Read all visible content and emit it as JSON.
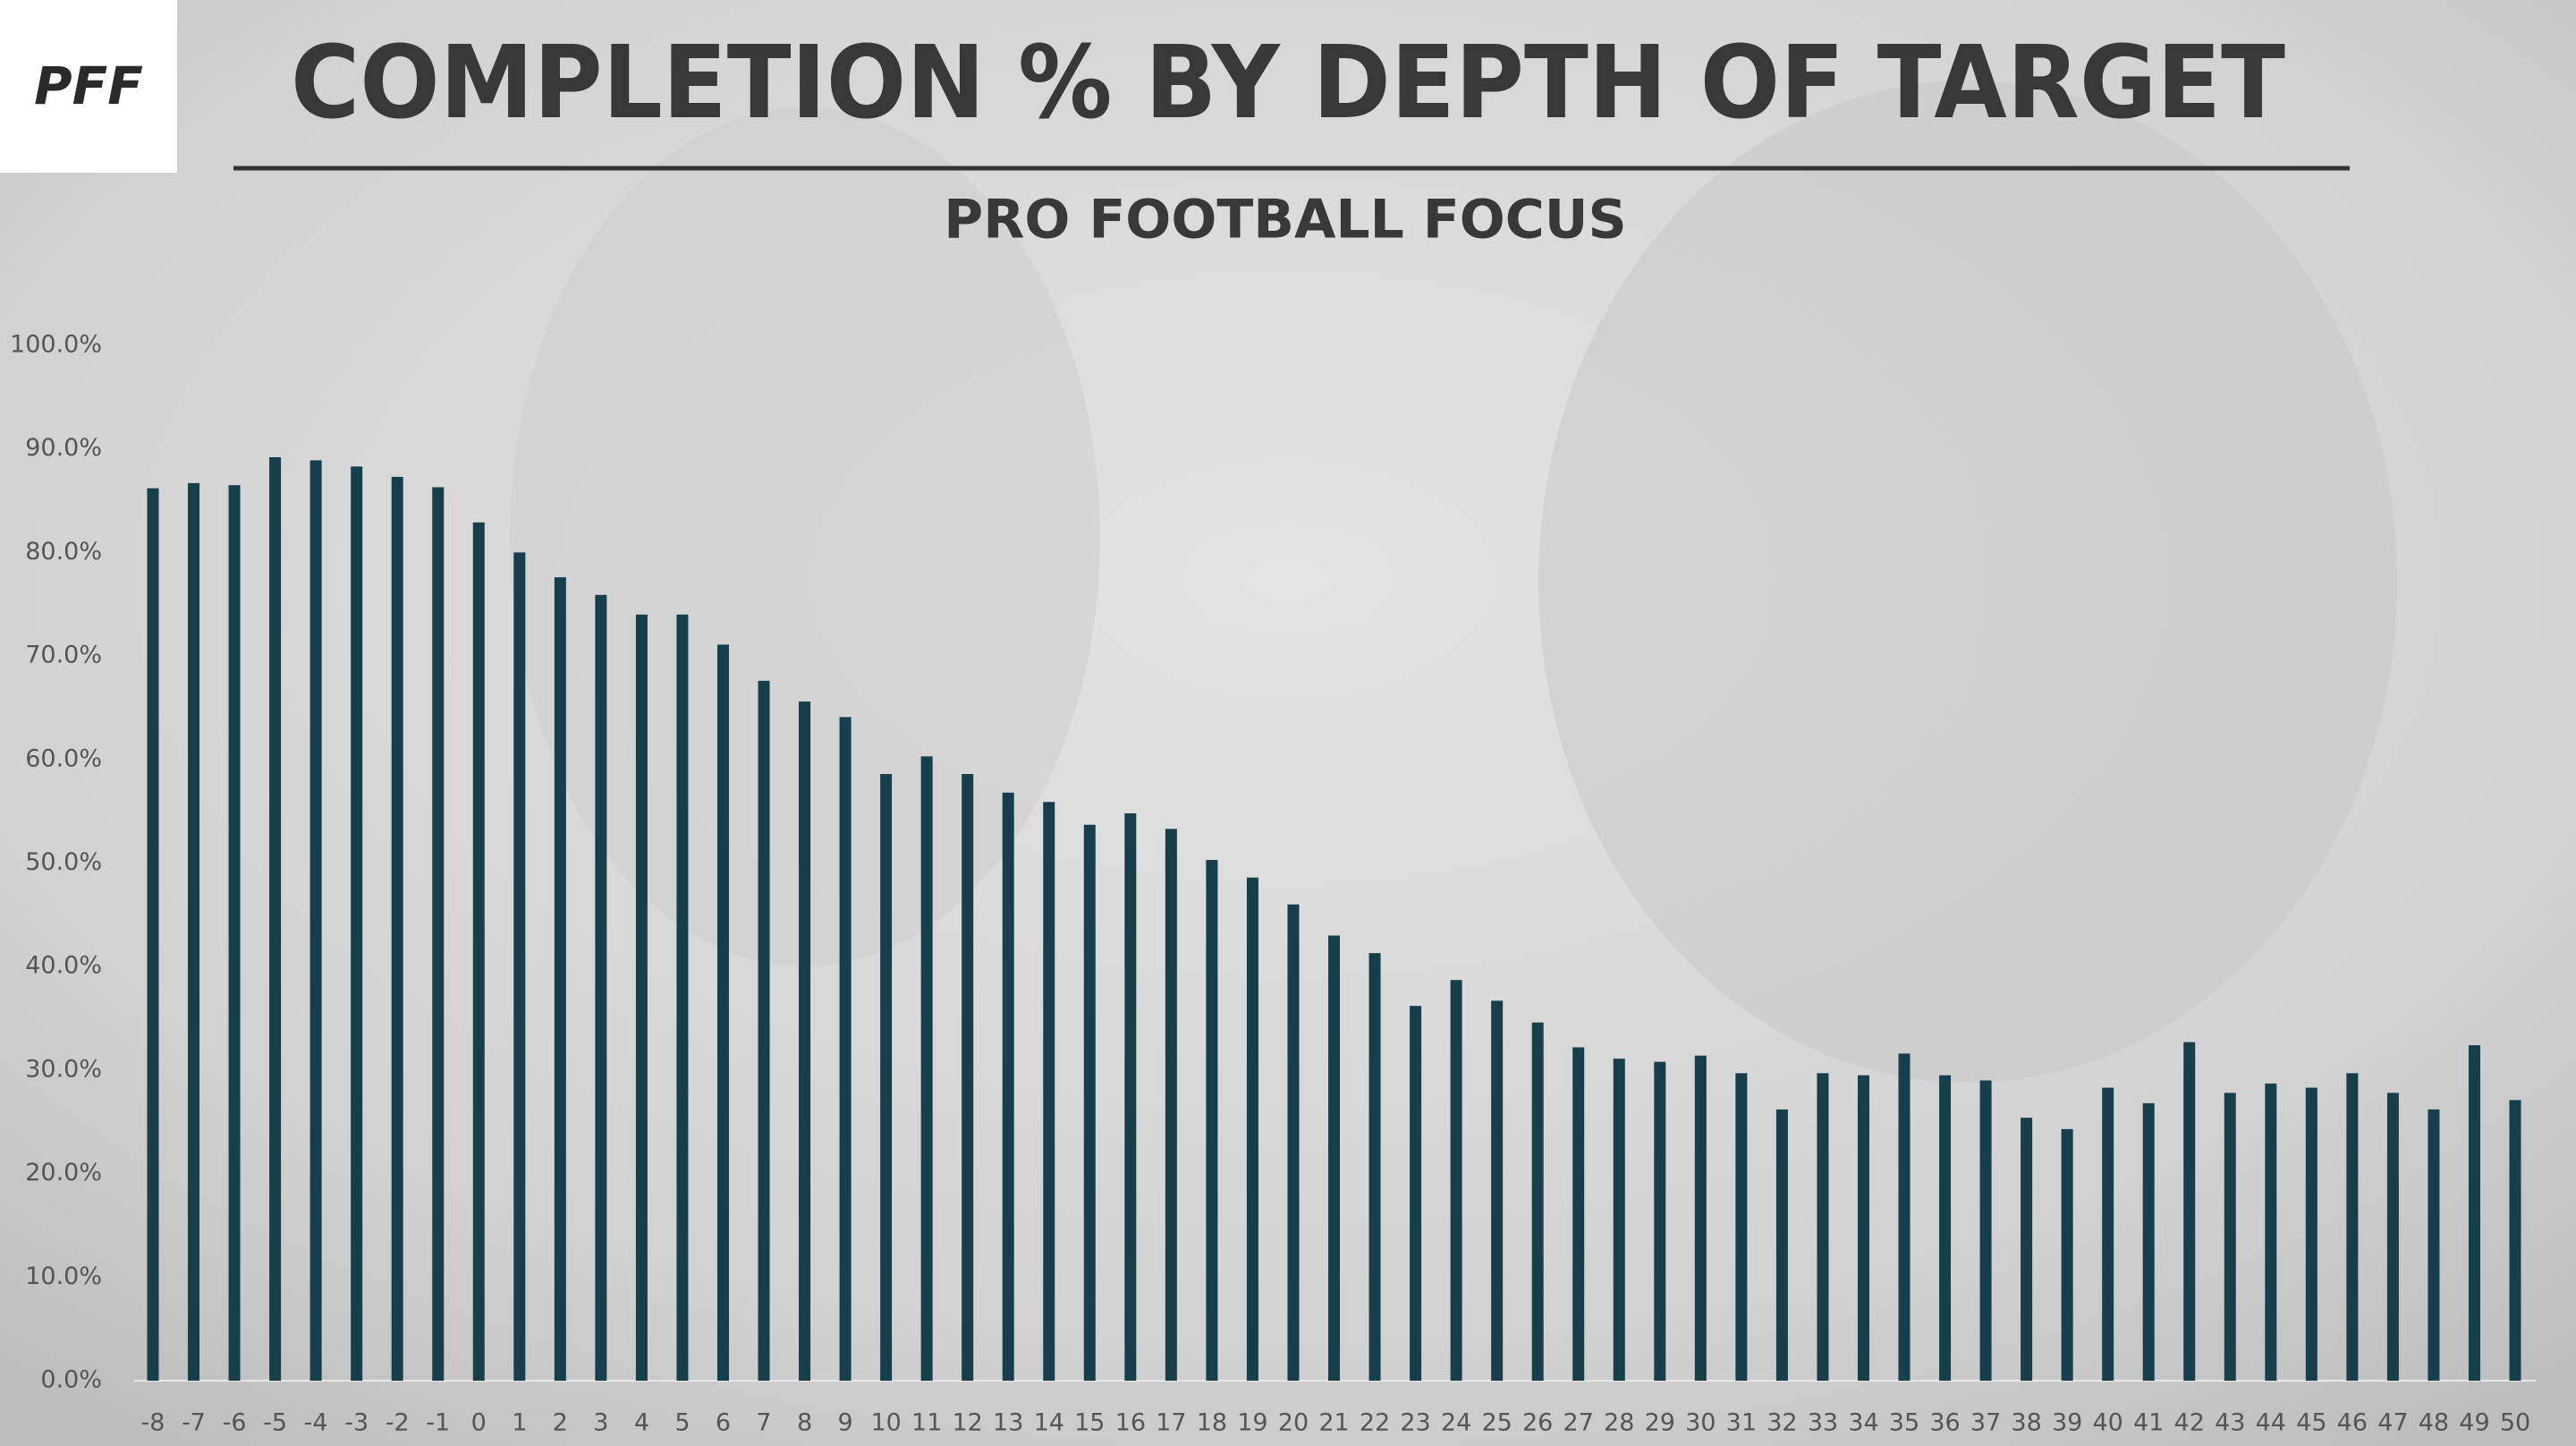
{
  "logo": "PFF",
  "chart_data": {
    "type": "bar",
    "title": "COMPLETION % BY DEPTH OF TARGET",
    "subtitle": "PRO FOOTBALL FOCUS",
    "categories": [
      "-8",
      "-7",
      "-6",
      "-5",
      "-4",
      "-3",
      "-2",
      "-1",
      "0",
      "1",
      "2",
      "3",
      "4",
      "5",
      "6",
      "7",
      "8",
      "9",
      "10",
      "11",
      "12",
      "13",
      "14",
      "15",
      "16",
      "17",
      "18",
      "19",
      "20",
      "21",
      "22",
      "23",
      "24",
      "25",
      "26",
      "27",
      "28",
      "29",
      "30",
      "31",
      "32",
      "33",
      "34",
      "35",
      "36",
      "37",
      "38",
      "39",
      "40",
      "41",
      "42",
      "43",
      "44",
      "45",
      "46",
      "47",
      "48",
      "49",
      "50"
    ],
    "values": [
      86.2,
      86.7,
      86.5,
      89.2,
      88.9,
      88.3,
      87.3,
      86.3,
      82.9,
      80.0,
      77.6,
      75.9,
      74.0,
      74.0,
      71.1,
      67.6,
      65.6,
      64.1,
      58.6,
      60.3,
      58.6,
      56.8,
      55.9,
      53.7,
      54.8,
      53.3,
      50.3,
      48.6,
      46.0,
      43.0,
      41.3,
      36.2,
      38.7,
      36.7,
      34.6,
      32.2,
      31.1,
      30.8,
      31.4,
      29.7,
      26.2,
      29.7,
      29.5,
      31.6,
      29.5,
      29.0,
      25.4,
      24.3,
      28.3,
      26.8,
      32.7,
      27.8,
      28.7,
      28.3,
      29.7,
      27.8,
      26.2,
      32.4,
      27.1
    ],
    "color": "#173f4b",
    "ylim": [
      0,
      100
    ],
    "yticks": [
      {
        "value": 0,
        "label": "0.0%"
      },
      {
        "value": 10,
        "label": "10.0%"
      },
      {
        "value": 20,
        "label": "20.0%"
      },
      {
        "value": 30,
        "label": "30.0%"
      },
      {
        "value": 40,
        "label": "40.0%"
      },
      {
        "value": 50,
        "label": "50.0%"
      },
      {
        "value": 60,
        "label": "60.0%"
      },
      {
        "value": 70,
        "label": "70.0%"
      },
      {
        "value": 80,
        "label": "80.0%"
      },
      {
        "value": 90,
        "label": "90.0%"
      },
      {
        "value": 100,
        "label": "100.0%"
      }
    ],
    "grid": false
  }
}
